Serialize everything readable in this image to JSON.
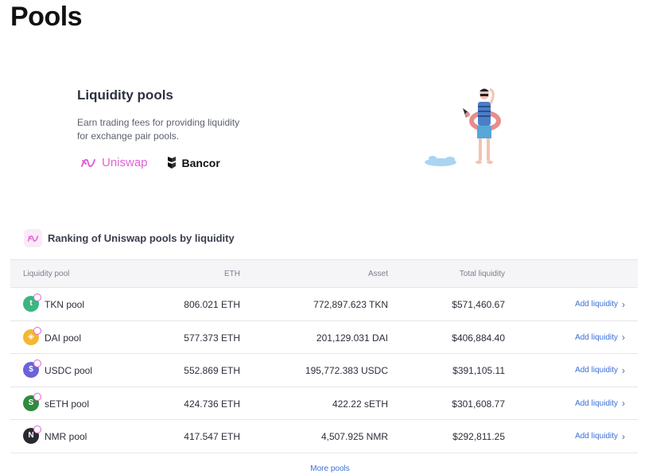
{
  "page": {
    "title": "Pools"
  },
  "hero": {
    "title": "Liquidity pools",
    "description": "Earn trading fees for providing liquidity for exchange pair pools.",
    "brands": [
      {
        "name": "Uniswap",
        "icon": "uniswap-icon"
      },
      {
        "name": "Bancor",
        "icon": "bancor-icon"
      }
    ]
  },
  "ranking": {
    "title": "Ranking of Uniswap pools by liquidity",
    "icon": "uniswap-icon"
  },
  "table": {
    "headers": {
      "pool": "Liquidity pool",
      "eth": "ETH",
      "asset": "Asset",
      "total": "Total liquidity"
    },
    "rows": [
      {
        "pool": "TKN pool",
        "eth": "806.021 ETH",
        "asset": "772,897.623 TKN",
        "total": "$571,460.67",
        "action": "Add liquidity",
        "token_color": "#3bb583",
        "token_symbol": "t"
      },
      {
        "pool": "DAI pool",
        "eth": "577.373 ETH",
        "asset": "201,129.031 DAI",
        "total": "$406,884.40",
        "action": "Add liquidity",
        "token_color": "#f4b731",
        "token_symbol": "◈"
      },
      {
        "pool": "USDC pool",
        "eth": "552.869 ETH",
        "asset": "195,772.383 USDC",
        "total": "$391,105.11",
        "action": "Add liquidity",
        "token_color": "#6c63d9",
        "token_symbol": "$"
      },
      {
        "pool": "sETH pool",
        "eth": "424.736 ETH",
        "asset": "422.22 sETH",
        "total": "$301,608.77",
        "action": "Add liquidity",
        "token_color": "#2e8b3e",
        "token_symbol": "S"
      },
      {
        "pool": "NMR pool",
        "eth": "417.547 ETH",
        "asset": "4,507.925 NMR",
        "total": "$292,811.25",
        "action": "Add liquidity",
        "token_color": "#2a2a33",
        "token_symbol": "N"
      }
    ]
  },
  "more_label": "More pools",
  "colors": {
    "uniswap": "#e062d6",
    "link": "#3b6fd6"
  }
}
